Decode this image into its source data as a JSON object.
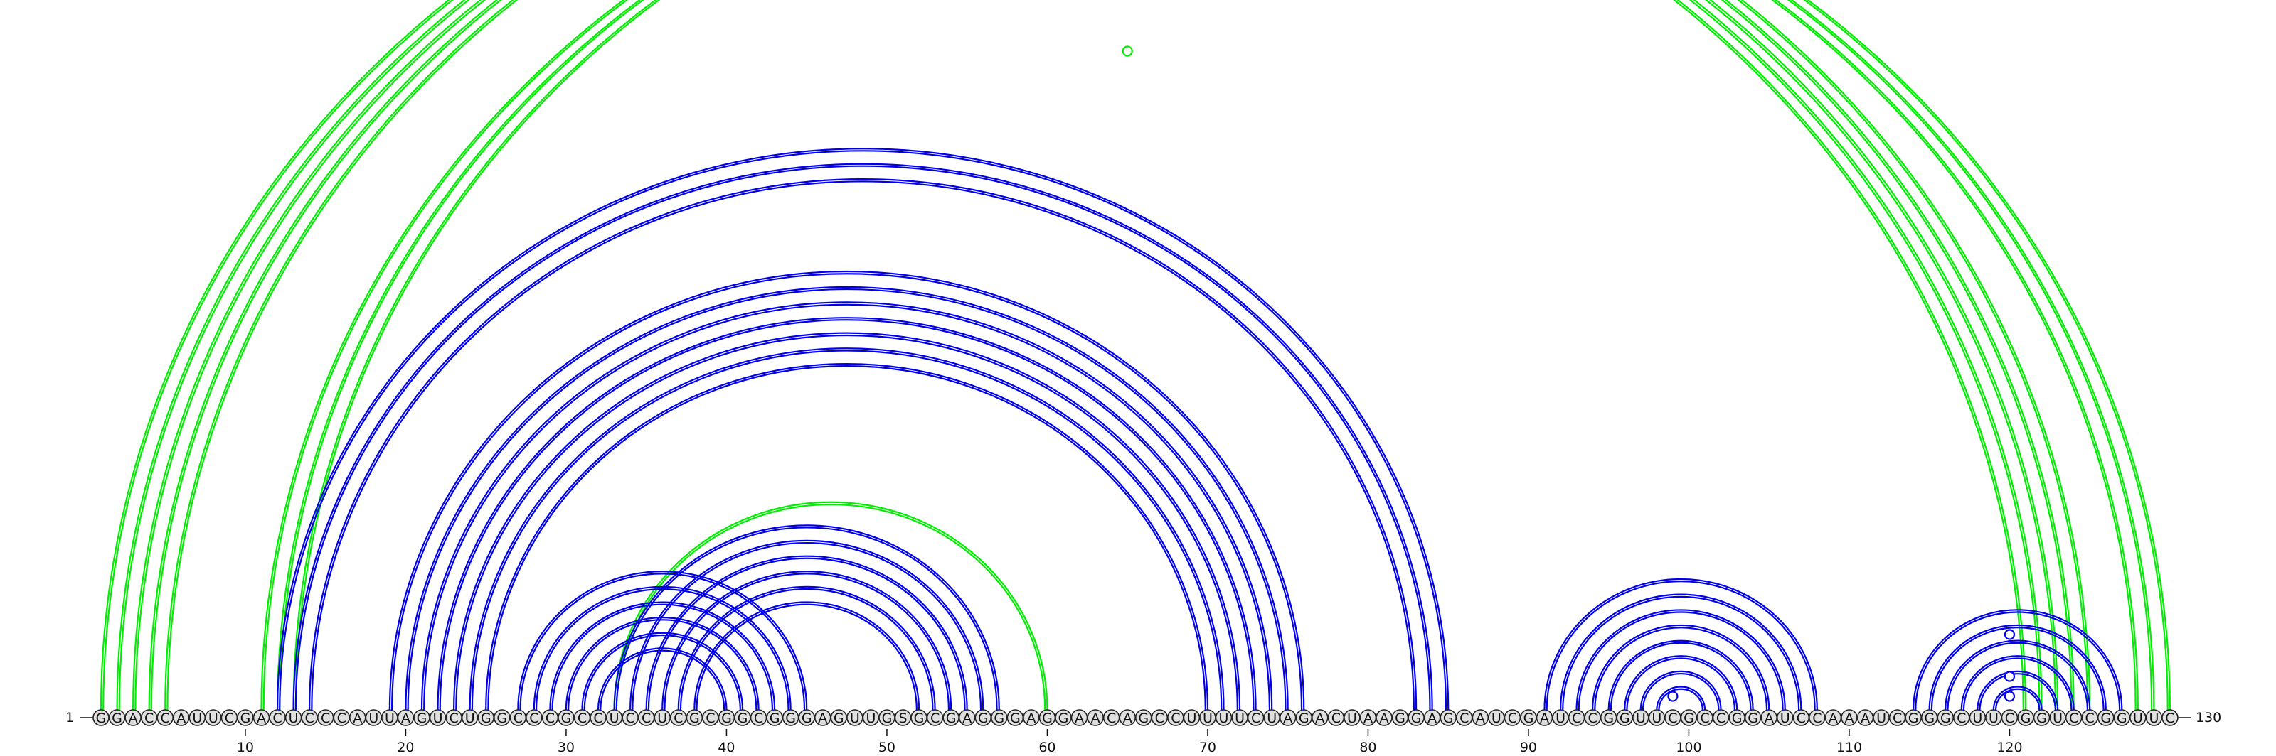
{
  "sequence": "GGACCAUUCGACUCCCAUUAGUCUGGCCCGCCUCCUCGCGGCGGGAGUUGSGCGAGGGAGGAACAGCCUUUUCUAGACUAAGGAGCAUCGAUCCGGUUCGCCGGAUCCAAAUCGGGCUUCGGUCCGGUUC",
  "start_label": "1",
  "end_label": "130",
  "ticks": [
    10,
    20,
    30,
    40,
    50,
    60,
    70,
    80,
    90,
    100,
    110,
    120
  ],
  "colors": {
    "structure_a": "#0000ee",
    "structure_b": "#00ee00"
  },
  "structure_a_pairs": [
    [
      12,
      85
    ],
    [
      13,
      84
    ],
    [
      14,
      83
    ],
    [
      19,
      76
    ],
    [
      20,
      75
    ],
    [
      21,
      74
    ],
    [
      22,
      73
    ],
    [
      23,
      72
    ],
    [
      24,
      71
    ],
    [
      25,
      70
    ],
    [
      27,
      45
    ],
    [
      28,
      44
    ],
    [
      29,
      43
    ],
    [
      30,
      42
    ],
    [
      31,
      41
    ],
    [
      32,
      40
    ],
    [
      33,
      57
    ],
    [
      34,
      56
    ],
    [
      35,
      55
    ],
    [
      36,
      54
    ],
    [
      37,
      53
    ],
    [
      38,
      52
    ],
    [
      91,
      108
    ],
    [
      92,
      107
    ],
    [
      93,
      106
    ],
    [
      94,
      105
    ],
    [
      95,
      104
    ],
    [
      96,
      103
    ],
    [
      97,
      102
    ],
    [
      98,
      101
    ],
    [
      114,
      127
    ],
    [
      115,
      126
    ],
    [
      116,
      125
    ],
    [
      117,
      124
    ],
    [
      118,
      123
    ],
    [
      119,
      122
    ]
  ],
  "structure_b_pairs": [
    [
      1,
      121
    ],
    [
      2,
      122
    ],
    [
      3,
      123
    ],
    [
      4,
      124
    ],
    [
      5,
      125
    ],
    [
      11,
      128
    ],
    [
      12,
      129
    ],
    [
      13,
      130
    ],
    [
      33,
      60
    ]
  ],
  "markers": [
    {
      "structure": "b",
      "position": 65
    },
    {
      "structure": "a",
      "position": 99
    },
    {
      "structure": "a",
      "position": 120
    },
    {
      "structure": "a",
      "position": 120
    },
    {
      "structure": "a",
      "position": 120
    }
  ]
}
